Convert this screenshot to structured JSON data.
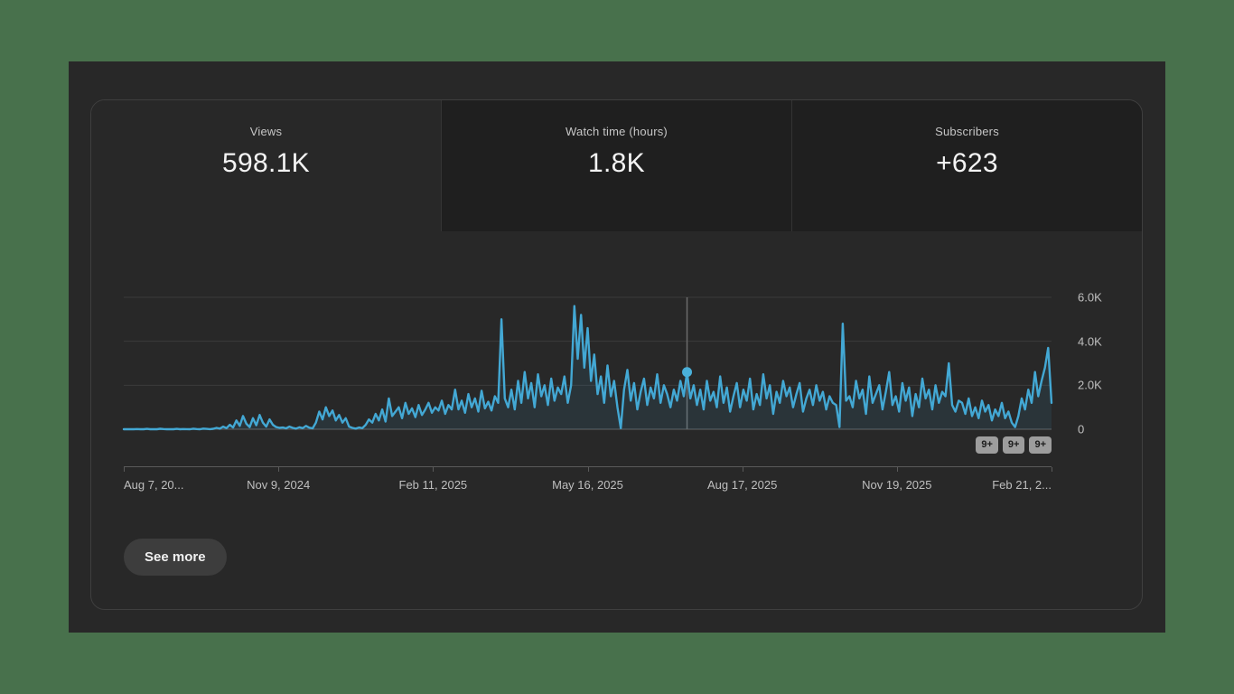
{
  "colors": {
    "page_background": "#48714c",
    "panel_background": "#282828",
    "unselected_tab_background": "#1f1f1f",
    "chart_line": "#43a8d4",
    "chart_fill": "rgba(67,168,212,0.10)",
    "chart_marker_dot": "#4ab0d9",
    "gridline": "#3a3a3a",
    "baseline": "#4f4f4f",
    "marker_line": "#6b6b6b"
  },
  "tabs": {
    "items": [
      {
        "label": "Views",
        "value": "598.1K",
        "selected": true
      },
      {
        "label": "Watch time (hours)",
        "value": "1.8K",
        "selected": false
      },
      {
        "label": "Subscribers",
        "value": "+623",
        "selected": false
      }
    ]
  },
  "chart_data": {
    "type": "line",
    "title": "Channel views over time (daily)",
    "series_name": "Views",
    "ylabel": "",
    "xlabel": "",
    "ylim": [
      0,
      6000
    ],
    "grid": true,
    "legend": "none",
    "y_ticks": [
      "6.0K",
      "4.0K",
      "2.0K",
      "0"
    ],
    "x_ticks": [
      "Aug 7, 20...",
      "Nov 9, 2024",
      "Feb 11, 2025",
      "May 16, 2025",
      "Aug 17, 2025",
      "Nov 19, 2025",
      "Feb 21, 2..."
    ],
    "marker": {
      "index": 170,
      "value": 2600
    },
    "values": [
      0,
      0,
      5,
      0,
      10,
      0,
      0,
      15,
      0,
      5,
      0,
      20,
      10,
      0,
      5,
      0,
      15,
      0,
      10,
      5,
      0,
      25,
      10,
      0,
      30,
      15,
      5,
      20,
      60,
      30,
      120,
      50,
      200,
      80,
      400,
      150,
      600,
      250,
      100,
      500,
      180,
      650,
      300,
      120,
      450,
      200,
      100,
      60,
      80,
      40,
      120,
      60,
      30,
      90,
      50,
      150,
      70,
      40,
      300,
      800,
      450,
      1000,
      600,
      850,
      400,
      650,
      300,
      500,
      120,
      60,
      30,
      80,
      50,
      200,
      450,
      300,
      700,
      400,
      900,
      350,
      1400,
      600,
      800,
      1000,
      500,
      1200,
      700,
      950,
      550,
      1100,
      650,
      900,
      1200,
      750,
      1000,
      850,
      1300,
      700,
      1100,
      900,
      1800,
      900,
      1300,
      750,
      1600,
      1000,
      1400,
      800,
      1750,
      950,
      1250,
      850,
      1500,
      1200,
      5000,
      1400,
      1000,
      1800,
      900,
      2200,
      1200,
      2600,
      1400,
      2100,
      1000,
      2500,
      1500,
      2000,
      1100,
      2300,
      1300,
      1900,
      1600,
      2400,
      1200,
      2000,
      5600,
      3200,
      5200,
      2800,
      4600,
      2200,
      3400,
      1600,
      2400,
      1200,
      2900,
      1500,
      2200,
      1000,
      50,
      1800,
      2700,
      1300,
      2100,
      900,
      1700,
      2300,
      1100,
      1900,
      1400,
      2500,
      1200,
      2000,
      1600,
      1000,
      1800,
      1300,
      2200,
      1500,
      2600,
      1400,
      2000,
      1100,
      1800,
      900,
      2200,
      1300,
      1700,
      1000,
      2400,
      1200,
      1900,
      800,
      1500,
      2100,
      1000,
      1800,
      1300,
      2300,
      900,
      1600,
      1100,
      2500,
      1400,
      2000,
      700,
      1700,
      1200,
      2200,
      1500,
      1900,
      1000,
      1600,
      2100,
      800,
      1400,
      1800,
      1100,
      2000,
      1300,
      1700,
      900,
      1500,
      1200,
      1100,
      100,
      4800,
      1300,
      1500,
      1000,
      2200,
      1400,
      1800,
      700,
      2400,
      1200,
      1600,
      2000,
      900,
      1700,
      2600,
      1100,
      1500,
      800,
      2100,
      1300,
      1900,
      600,
      1600,
      1000,
      2300,
      1400,
      1800,
      900,
      2000,
      1200,
      1700,
      1500,
      3000,
      1100,
      800,
      1300,
      1200,
      700,
      1400,
      600,
      1000,
      500,
      1300,
      800,
      1100,
      400,
      900,
      600,
      1200,
      500,
      800,
      300,
      100,
      600,
      1400,
      900,
      1800,
      1200,
      2600,
      1500,
      2200,
      2800,
      3700,
      1200
    ]
  },
  "chart_badges": [
    "9+",
    "9+",
    "9+"
  ],
  "footer": {
    "see_more_label": "See more"
  }
}
